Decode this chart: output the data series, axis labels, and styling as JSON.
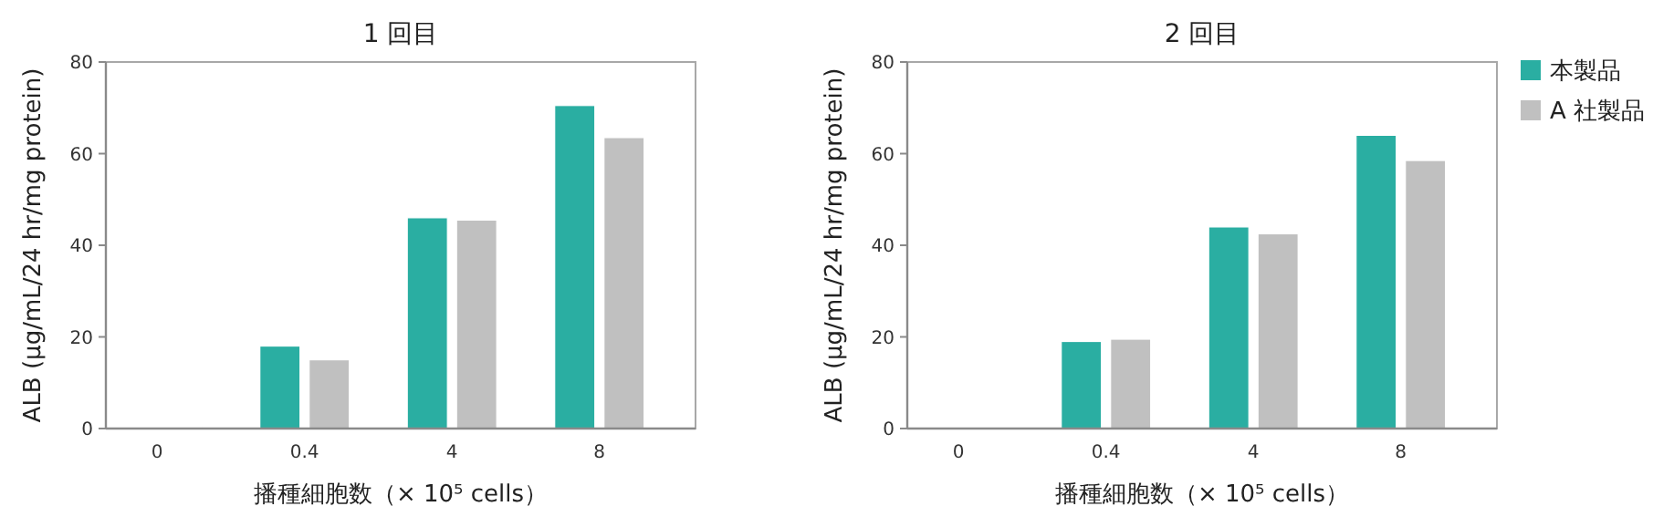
{
  "chart_data": [
    {
      "type": "bar",
      "title": "1 回目",
      "xlabel": "播種細胞数（× 10⁵ cells）",
      "ylabel": "ALB (μg/mL/24 hr/mg protein)",
      "categories": [
        "0",
        "0.4",
        "4",
        "8"
      ],
      "ylim": [
        0,
        80
      ],
      "yticks": [
        0,
        20,
        40,
        60,
        80
      ],
      "grid": false,
      "legend": false,
      "series": [
        {
          "color": "#2aaea2",
          "values": [
            0,
            18,
            46,
            70.5
          ]
        },
        {
          "color": "#c0c0c0",
          "values": [
            0.3,
            15,
            45.5,
            63.5
          ]
        }
      ]
    },
    {
      "type": "bar",
      "title": "2 回目",
      "xlabel": "播種細胞数（× 10⁵ cells）",
      "ylabel": "ALB (μg/mL/24 hr/mg protein)",
      "categories": [
        "0",
        "0.4",
        "4",
        "8"
      ],
      "ylim": [
        0,
        80
      ],
      "yticks": [
        0,
        20,
        40,
        60,
        80
      ],
      "grid": false,
      "legend": "top right",
      "series": [
        {
          "name": "本製品",
          "color": "#2aaea2",
          "values": [
            0,
            19,
            44,
            64
          ]
        },
        {
          "name": "A 社製品",
          "color": "#c0c0c0",
          "values": [
            0,
            19.5,
            42.5,
            58.5
          ]
        }
      ]
    }
  ]
}
